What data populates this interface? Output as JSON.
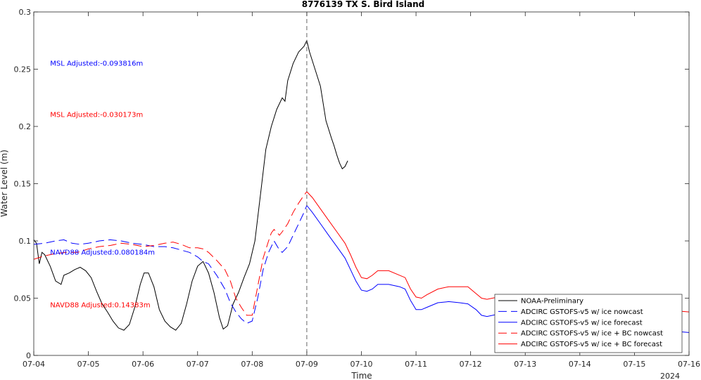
{
  "chart_data": {
    "type": "line",
    "title": "8776139 TX S. Bird Island",
    "xlabel": "Time",
    "ylabel": "Water Level (m)",
    "year_label": "2024",
    "x_ticks": [
      "07-04",
      "07-05",
      "07-06",
      "07-07",
      "07-08",
      "07-09",
      "07-10",
      "07-11",
      "07-12",
      "07-13",
      "07-14",
      "07-15",
      "07-16"
    ],
    "xlim_days": [
      0,
      12
    ],
    "ylim": [
      0,
      0.3
    ],
    "y_ticks": [
      0,
      0.05,
      0.1,
      0.15,
      0.2,
      0.25,
      0.3
    ],
    "y_tick_labels": [
      "0",
      "0.05",
      "0.1",
      "0.15",
      "0.2",
      "0.25",
      "0.3"
    ],
    "vline_day": 5,
    "legend_position": "bottom-right",
    "colors": {
      "obs": "#000000",
      "nowcast_blue": "#0000ff",
      "bc": "#ff0000"
    },
    "annotations": [
      {
        "text": "MSL Adjusted:-0.093816m",
        "color": "#0000ff",
        "day": 0.3,
        "y": 0.255
      },
      {
        "text": "MSL Adjusted:-0.030173m",
        "color": "#ff0000",
        "day": 0.3,
        "y": 0.21
      },
      {
        "text": "NAVD88 Adjusted:0.080184m",
        "color": "#0000ff",
        "day": 0.3,
        "y": 0.09
      },
      {
        "text": "NAVD88 Adjusted:0.14383m",
        "color": "#ff0000",
        "day": 0.3,
        "y": 0.044
      }
    ],
    "series": [
      {
        "name": "NOAA-Preliminary",
        "color": "#000000",
        "dash": "solid",
        "points": [
          [
            0,
            0.101
          ],
          [
            0.05,
            0.098
          ],
          [
            0.1,
            0.08
          ],
          [
            0.15,
            0.09
          ],
          [
            0.2,
            0.088
          ],
          [
            0.3,
            0.078
          ],
          [
            0.4,
            0.065
          ],
          [
            0.5,
            0.062
          ],
          [
            0.55,
            0.07
          ],
          [
            0.65,
            0.072
          ],
          [
            0.75,
            0.075
          ],
          [
            0.85,
            0.077
          ],
          [
            0.95,
            0.074
          ],
          [
            1.05,
            0.068
          ],
          [
            1.15,
            0.056
          ],
          [
            1.25,
            0.045
          ],
          [
            1.35,
            0.038
          ],
          [
            1.45,
            0.03
          ],
          [
            1.55,
            0.024
          ],
          [
            1.65,
            0.022
          ],
          [
            1.75,
            0.027
          ],
          [
            1.85,
            0.042
          ],
          [
            1.95,
            0.062
          ],
          [
            2.02,
            0.072
          ],
          [
            2.1,
            0.072
          ],
          [
            2.2,
            0.06
          ],
          [
            2.3,
            0.04
          ],
          [
            2.4,
            0.03
          ],
          [
            2.5,
            0.025
          ],
          [
            2.6,
            0.022
          ],
          [
            2.7,
            0.028
          ],
          [
            2.8,
            0.045
          ],
          [
            2.9,
            0.065
          ],
          [
            3.0,
            0.078
          ],
          [
            3.1,
            0.082
          ],
          [
            3.2,
            0.072
          ],
          [
            3.3,
            0.055
          ],
          [
            3.4,
            0.033
          ],
          [
            3.47,
            0.023
          ],
          [
            3.55,
            0.026
          ],
          [
            3.65,
            0.045
          ],
          [
            3.75,
            0.055
          ],
          [
            3.85,
            0.068
          ],
          [
            3.95,
            0.08
          ],
          [
            4.05,
            0.1
          ],
          [
            4.15,
            0.14
          ],
          [
            4.25,
            0.18
          ],
          [
            4.35,
            0.2
          ],
          [
            4.45,
            0.215
          ],
          [
            4.55,
            0.225
          ],
          [
            4.6,
            0.222
          ],
          [
            4.65,
            0.24
          ],
          [
            4.75,
            0.255
          ],
          [
            4.85,
            0.265
          ],
          [
            4.95,
            0.27
          ],
          [
            5.0,
            0.275
          ],
          [
            5.05,
            0.265
          ],
          [
            5.15,
            0.25
          ],
          [
            5.25,
            0.235
          ],
          [
            5.35,
            0.205
          ],
          [
            5.45,
            0.19
          ],
          [
            5.5,
            0.183
          ],
          [
            5.55,
            0.175
          ],
          [
            5.6,
            0.168
          ],
          [
            5.65,
            0.163
          ],
          [
            5.7,
            0.165
          ],
          [
            5.75,
            0.17
          ]
        ]
      },
      {
        "name": "ADCIRC GSTOFS-v5 w/ ice nowcast",
        "color": "#0000ff",
        "dash": "long",
        "points": [
          [
            0,
            0.097
          ],
          [
            0.2,
            0.098
          ],
          [
            0.4,
            0.1
          ],
          [
            0.55,
            0.101
          ],
          [
            0.7,
            0.098
          ],
          [
            0.85,
            0.097
          ],
          [
            1.0,
            0.098
          ],
          [
            1.2,
            0.1
          ],
          [
            1.4,
            0.101
          ],
          [
            1.6,
            0.1
          ],
          [
            1.8,
            0.098
          ],
          [
            2.0,
            0.097
          ],
          [
            2.2,
            0.095
          ],
          [
            2.4,
            0.095
          ],
          [
            2.55,
            0.094
          ],
          [
            2.7,
            0.092
          ],
          [
            2.85,
            0.09
          ],
          [
            3.0,
            0.086
          ],
          [
            3.1,
            0.082
          ],
          [
            3.2,
            0.08
          ],
          [
            3.35,
            0.07
          ],
          [
            3.5,
            0.058
          ],
          [
            3.6,
            0.046
          ],
          [
            3.7,
            0.038
          ],
          [
            3.8,
            0.032
          ],
          [
            3.9,
            0.028
          ],
          [
            4.0,
            0.03
          ],
          [
            4.1,
            0.05
          ],
          [
            4.2,
            0.075
          ],
          [
            4.3,
            0.09
          ],
          [
            4.35,
            0.095
          ],
          [
            4.4,
            0.1
          ],
          [
            4.5,
            0.092
          ],
          [
            4.55,
            0.09
          ],
          [
            4.65,
            0.095
          ],
          [
            4.75,
            0.105
          ],
          [
            4.85,
            0.115
          ],
          [
            4.95,
            0.125
          ],
          [
            5.0,
            0.131
          ]
        ]
      },
      {
        "name": "ADCIRC GSTOFS-v5 w/ ice forecast",
        "color": "#0000ff",
        "dash": "solid",
        "points": [
          [
            5.0,
            0.131
          ],
          [
            5.1,
            0.125
          ],
          [
            5.25,
            0.115
          ],
          [
            5.4,
            0.105
          ],
          [
            5.55,
            0.095
          ],
          [
            5.7,
            0.085
          ],
          [
            5.8,
            0.075
          ],
          [
            5.9,
            0.065
          ],
          [
            6.0,
            0.057
          ],
          [
            6.1,
            0.056
          ],
          [
            6.2,
            0.058
          ],
          [
            6.3,
            0.062
          ],
          [
            6.5,
            0.062
          ],
          [
            6.7,
            0.06
          ],
          [
            6.8,
            0.058
          ],
          [
            6.9,
            0.048
          ],
          [
            7.0,
            0.04
          ],
          [
            7.1,
            0.04
          ],
          [
            7.2,
            0.042
          ],
          [
            7.4,
            0.046
          ],
          [
            7.6,
            0.047
          ],
          [
            7.8,
            0.046
          ],
          [
            7.95,
            0.045
          ],
          [
            8.1,
            0.04
          ],
          [
            8.2,
            0.035
          ],
          [
            8.3,
            0.034
          ],
          [
            8.5,
            0.036
          ],
          [
            8.7,
            0.037
          ],
          [
            9.0,
            0.035
          ],
          [
            9.5,
            0.032
          ],
          [
            10.0,
            0.028
          ],
          [
            10.5,
            0.026
          ],
          [
            11.0,
            0.024
          ],
          [
            11.5,
            0.022
          ],
          [
            12.0,
            0.02
          ]
        ]
      },
      {
        "name": "ADCIRC GSTOFS-v5 w/ ice + BC nowcast",
        "color": "#ff0000",
        "dash": "long",
        "points": [
          [
            0,
            0.084
          ],
          [
            0.2,
            0.087
          ],
          [
            0.4,
            0.089
          ],
          [
            0.6,
            0.09
          ],
          [
            0.8,
            0.09
          ],
          [
            1.0,
            0.093
          ],
          [
            1.2,
            0.095
          ],
          [
            1.4,
            0.096
          ],
          [
            1.6,
            0.098
          ],
          [
            1.8,
            0.097
          ],
          [
            2.0,
            0.095
          ],
          [
            2.2,
            0.096
          ],
          [
            2.4,
            0.098
          ],
          [
            2.55,
            0.099
          ],
          [
            2.7,
            0.097
          ],
          [
            2.85,
            0.094
          ],
          [
            3.0,
            0.094
          ],
          [
            3.1,
            0.093
          ],
          [
            3.2,
            0.09
          ],
          [
            3.35,
            0.083
          ],
          [
            3.5,
            0.075
          ],
          [
            3.6,
            0.065
          ],
          [
            3.7,
            0.05
          ],
          [
            3.8,
            0.042
          ],
          [
            3.9,
            0.035
          ],
          [
            4.0,
            0.035
          ],
          [
            4.1,
            0.06
          ],
          [
            4.2,
            0.085
          ],
          [
            4.3,
            0.1
          ],
          [
            4.35,
            0.107
          ],
          [
            4.4,
            0.11
          ],
          [
            4.5,
            0.105
          ],
          [
            4.55,
            0.108
          ],
          [
            4.65,
            0.115
          ],
          [
            4.75,
            0.125
          ],
          [
            4.85,
            0.133
          ],
          [
            4.95,
            0.14
          ],
          [
            5.0,
            0.143
          ]
        ]
      },
      {
        "name": "ADCIRC GSTOFS-v5 w/ ice + BC forecast",
        "color": "#ff0000",
        "dash": "solid",
        "points": [
          [
            5.0,
            0.143
          ],
          [
            5.1,
            0.138
          ],
          [
            5.25,
            0.128
          ],
          [
            5.4,
            0.118
          ],
          [
            5.55,
            0.108
          ],
          [
            5.7,
            0.098
          ],
          [
            5.8,
            0.088
          ],
          [
            5.9,
            0.077
          ],
          [
            6.0,
            0.068
          ],
          [
            6.1,
            0.067
          ],
          [
            6.2,
            0.07
          ],
          [
            6.3,
            0.074
          ],
          [
            6.5,
            0.074
          ],
          [
            6.7,
            0.07
          ],
          [
            6.8,
            0.068
          ],
          [
            6.9,
            0.058
          ],
          [
            7.0,
            0.051
          ],
          [
            7.1,
            0.05
          ],
          [
            7.2,
            0.053
          ],
          [
            7.4,
            0.058
          ],
          [
            7.6,
            0.06
          ],
          [
            7.8,
            0.06
          ],
          [
            7.95,
            0.06
          ],
          [
            8.1,
            0.054
          ],
          [
            8.2,
            0.05
          ],
          [
            8.3,
            0.049
          ],
          [
            8.5,
            0.051
          ],
          [
            8.7,
            0.053
          ],
          [
            9.0,
            0.05
          ],
          [
            9.5,
            0.047
          ],
          [
            10.0,
            0.044
          ],
          [
            10.5,
            0.042
          ],
          [
            11.0,
            0.041
          ],
          [
            11.5,
            0.04
          ],
          [
            12.0,
            0.038
          ]
        ]
      }
    ]
  }
}
